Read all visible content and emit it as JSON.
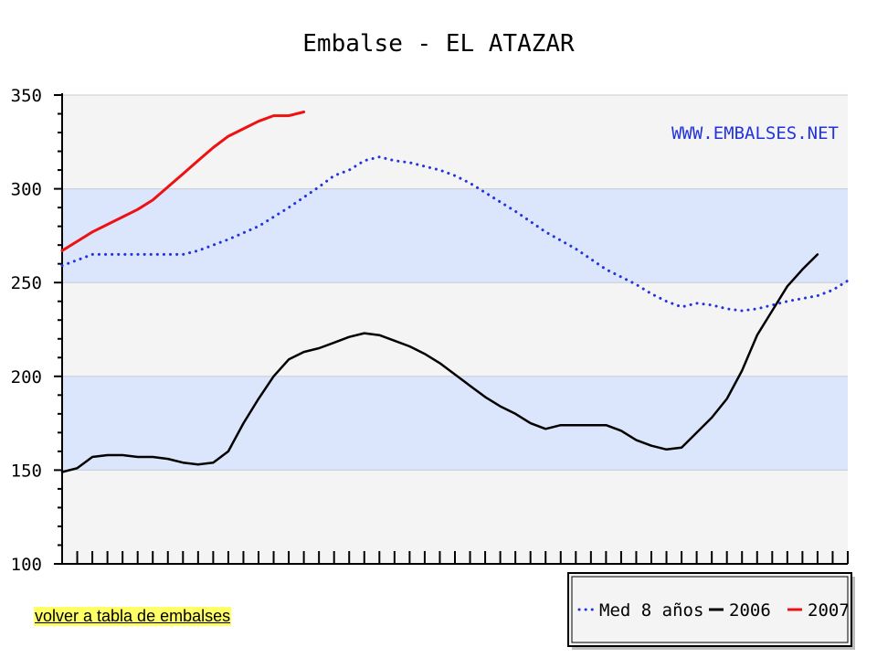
{
  "chart_data": {
    "type": "line",
    "title": "Embalse - EL ATAZAR",
    "watermark": "WWW.EMBALSES.NET",
    "ylim": [
      100,
      350
    ],
    "y_ticks": [
      100,
      150,
      200,
      250,
      300,
      350
    ],
    "x_range": [
      0,
      52
    ],
    "x_tick_count": 52,
    "bands": [
      {
        "from": 150,
        "to": 200
      },
      {
        "from": 250,
        "to": 300
      }
    ],
    "legend_position": "bottom-right",
    "series": [
      {
        "name": "Med 8 años",
        "style": "dotted",
        "color": "#2233dd",
        "points": [
          [
            0,
            259
          ],
          [
            1,
            262
          ],
          [
            2,
            265
          ],
          [
            3,
            265
          ],
          [
            5,
            265
          ],
          [
            8,
            265
          ],
          [
            9,
            267
          ],
          [
            11,
            273
          ],
          [
            13,
            280
          ],
          [
            15,
            290
          ],
          [
            17,
            301
          ],
          [
            18,
            307
          ],
          [
            19,
            310
          ],
          [
            20,
            315
          ],
          [
            21,
            317
          ],
          [
            22,
            315
          ],
          [
            23,
            314
          ],
          [
            24,
            312
          ],
          [
            25,
            310
          ],
          [
            26,
            307
          ],
          [
            27,
            303
          ],
          [
            28,
            298
          ],
          [
            29,
            293
          ],
          [
            30,
            288
          ],
          [
            32,
            277
          ],
          [
            34,
            268
          ],
          [
            36,
            257
          ],
          [
            38,
            249
          ],
          [
            39,
            244
          ],
          [
            40,
            240
          ],
          [
            41,
            237
          ],
          [
            42,
            239
          ],
          [
            43,
            238
          ],
          [
            44,
            236
          ],
          [
            45,
            235
          ],
          [
            46,
            236
          ],
          [
            47,
            238
          ],
          [
            48,
            240
          ],
          [
            50,
            243
          ],
          [
            51,
            246
          ],
          [
            52,
            251
          ]
        ]
      },
      {
        "name": "2006",
        "style": "solid",
        "color": "#000000",
        "points": [
          [
            0,
            149
          ],
          [
            1,
            151
          ],
          [
            2,
            157
          ],
          [
            3,
            158
          ],
          [
            4,
            158
          ],
          [
            5,
            157
          ],
          [
            6,
            157
          ],
          [
            7,
            156
          ],
          [
            8,
            154
          ],
          [
            9,
            153
          ],
          [
            10,
            154
          ],
          [
            11,
            160
          ],
          [
            12,
            175
          ],
          [
            13,
            188
          ],
          [
            14,
            200
          ],
          [
            15,
            209
          ],
          [
            16,
            213
          ],
          [
            17,
            215
          ],
          [
            18,
            218
          ],
          [
            19,
            221
          ],
          [
            20,
            223
          ],
          [
            21,
            222
          ],
          [
            22,
            219
          ],
          [
            23,
            216
          ],
          [
            24,
            212
          ],
          [
            25,
            207
          ],
          [
            26,
            201
          ],
          [
            27,
            195
          ],
          [
            28,
            189
          ],
          [
            29,
            184
          ],
          [
            30,
            180
          ],
          [
            31,
            175
          ],
          [
            32,
            172
          ],
          [
            33,
            174
          ],
          [
            34,
            174
          ],
          [
            35,
            174
          ],
          [
            36,
            174
          ],
          [
            37,
            171
          ],
          [
            38,
            166
          ],
          [
            39,
            163
          ],
          [
            40,
            161
          ],
          [
            41,
            162
          ],
          [
            42,
            170
          ],
          [
            43,
            178
          ],
          [
            44,
            188
          ],
          [
            45,
            203
          ],
          [
            46,
            222
          ],
          [
            47,
            235
          ],
          [
            48,
            248
          ],
          [
            49,
            257
          ],
          [
            50,
            265
          ]
        ]
      },
      {
        "name": "2007",
        "style": "solid",
        "color": "#ee1111",
        "points": [
          [
            0,
            267
          ],
          [
            1,
            272
          ],
          [
            2,
            277
          ],
          [
            3,
            281
          ],
          [
            4,
            285
          ],
          [
            5,
            289
          ],
          [
            6,
            294
          ],
          [
            7,
            301
          ],
          [
            8,
            308
          ],
          [
            9,
            315
          ],
          [
            10,
            322
          ],
          [
            11,
            328
          ],
          [
            12,
            332
          ],
          [
            13,
            336
          ],
          [
            14,
            339
          ],
          [
            15,
            339
          ],
          [
            16,
            341
          ]
        ]
      }
    ]
  },
  "link": {
    "label": "volver a tabla de embalses"
  }
}
